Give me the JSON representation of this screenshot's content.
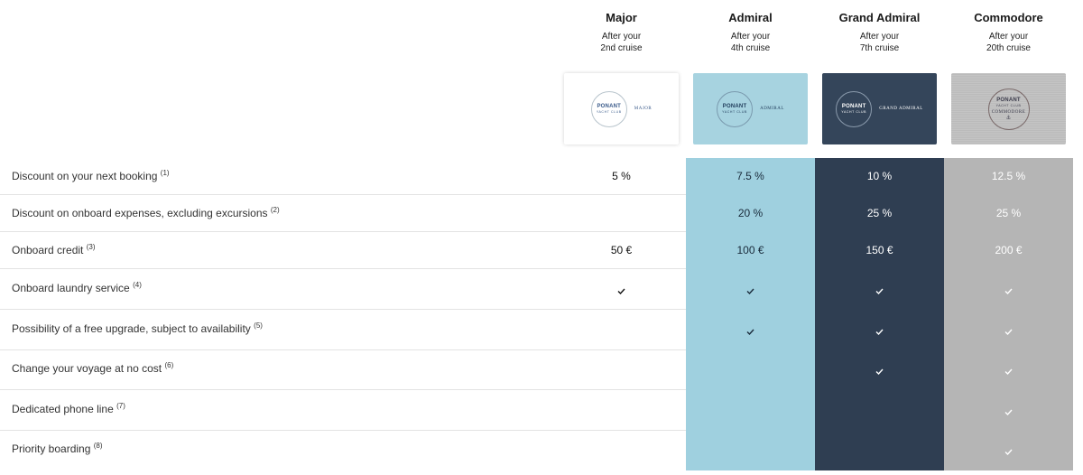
{
  "tiers": [
    {
      "name": "Major",
      "sub_line1": "After your",
      "sub_line2": "2nd cruise",
      "logo_brand": "PONANT",
      "logo_club": "YACHT CLUB",
      "logo_tag": "MAJOR"
    },
    {
      "name": "Admiral",
      "sub_line1": "After your",
      "sub_line2": "4th cruise",
      "logo_brand": "PONANT",
      "logo_club": "YACHT CLUB",
      "logo_tag": "ADMIRAL"
    },
    {
      "name": "Grand Admiral",
      "sub_line1": "After your",
      "sub_line2": "7th cruise",
      "logo_brand": "PONANT",
      "logo_club": "YACHT CLUB",
      "logo_tag": "GRAND ADMIRAL"
    },
    {
      "name": "Commodore",
      "sub_line1": "After your",
      "sub_line2": "20th cruise",
      "logo_brand": "PONANT",
      "logo_club": "YACHT CLUB",
      "logo_tag": "COMMODORE"
    }
  ],
  "rows": [
    {
      "label": "Discount on your next booking",
      "note": "(1)",
      "values": [
        "5 %",
        "7.5 %",
        "10 %",
        "12.5 %"
      ]
    },
    {
      "label": "Discount on onboard expenses, excluding excursions",
      "note": "(2)",
      "values": [
        "",
        "20 %",
        "25 %",
        "25 %"
      ]
    },
    {
      "label": "Onboard credit",
      "note": "(3)",
      "values": [
        "50 €",
        "100 €",
        "150 €",
        "200 €"
      ]
    },
    {
      "label": "Onboard laundry service",
      "note": "(4)",
      "checks": [
        true,
        true,
        true,
        true
      ]
    },
    {
      "label": "Possibility of a free upgrade, subject to availability",
      "note": "(5)",
      "checks": [
        false,
        true,
        true,
        true
      ]
    },
    {
      "label": "Change your voyage at no cost",
      "note": "(6)",
      "checks": [
        false,
        false,
        true,
        true
      ]
    },
    {
      "label": "Dedicated phone line",
      "note": "(7)",
      "checks": [
        false,
        false,
        false,
        true
      ]
    },
    {
      "label": "Priority boarding",
      "note": "(8)",
      "checks": [
        false,
        false,
        false,
        true
      ]
    }
  ],
  "icons": {
    "check": "check-icon",
    "logo": "ponant-yacht-club-logo"
  },
  "colors": {
    "admiral": "#9fd0df",
    "grand_admiral": "#2f3e52",
    "commodore": "#b5b5b5"
  }
}
